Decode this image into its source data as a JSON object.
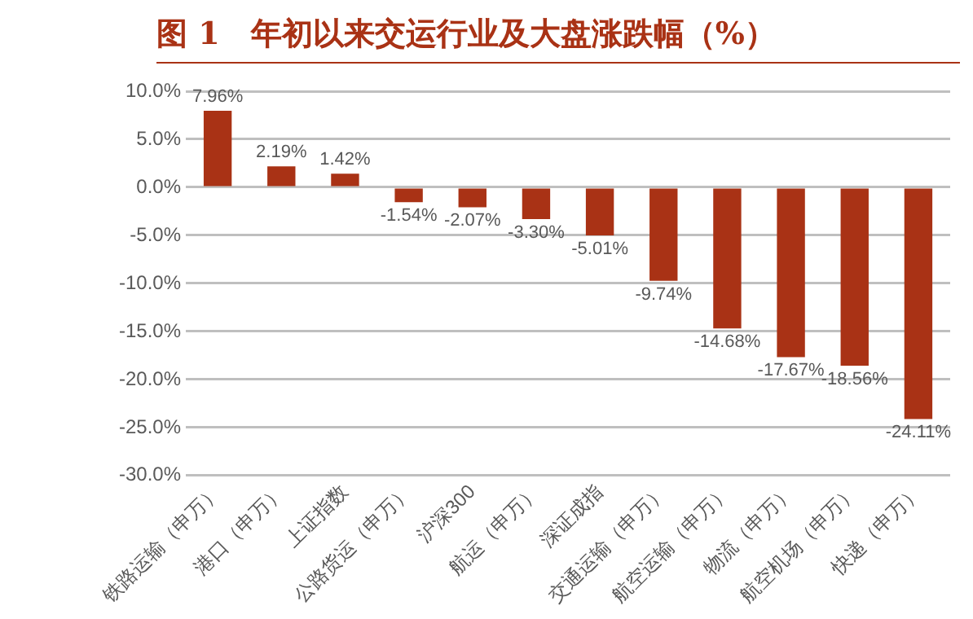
{
  "chart_data": {
    "type": "bar",
    "title": "图 1　年初以来交运行业及大盘涨跌幅（%）",
    "categories": [
      "铁路运输（申万）",
      "港口（申万）",
      "上证指数",
      "公路货运（申万）",
      "沪深300",
      "航运（申万）",
      "深证成指",
      "交通运输（申万）",
      "航空运输（申万）",
      "物流（申万）",
      "航空机场（申万）",
      "快递（申万）"
    ],
    "values": [
      7.96,
      2.19,
      1.42,
      -1.54,
      -2.07,
      -3.3,
      -5.01,
      -9.74,
      -14.68,
      -17.67,
      -18.56,
      -24.11
    ],
    "value_labels": [
      "7.96%",
      "2.19%",
      "1.42%",
      "-1.54%",
      "-2.07%",
      "-3.30%",
      "-5.01%",
      "-9.74%",
      "-14.68%",
      "-17.67%",
      "-18.56%",
      "-24.11%"
    ],
    "color": "#a93215",
    "ylim": [
      -30,
      10
    ],
    "yticks": [
      {
        "value": -30,
        "label": "-30.0%"
      },
      {
        "value": -25,
        "label": "-25.0%"
      },
      {
        "value": -20,
        "label": "-20.0%"
      },
      {
        "value": -15,
        "label": "-15.0%"
      },
      {
        "value": -10,
        "label": "-10.0%"
      },
      {
        "value": -5,
        "label": "-5.0%"
      },
      {
        "value": 0,
        "label": "0.0%"
      },
      {
        "value": 5,
        "label": "5.0%"
      },
      {
        "value": 10,
        "label": "10.0%"
      }
    ],
    "grid": "y",
    "legend": false
  }
}
